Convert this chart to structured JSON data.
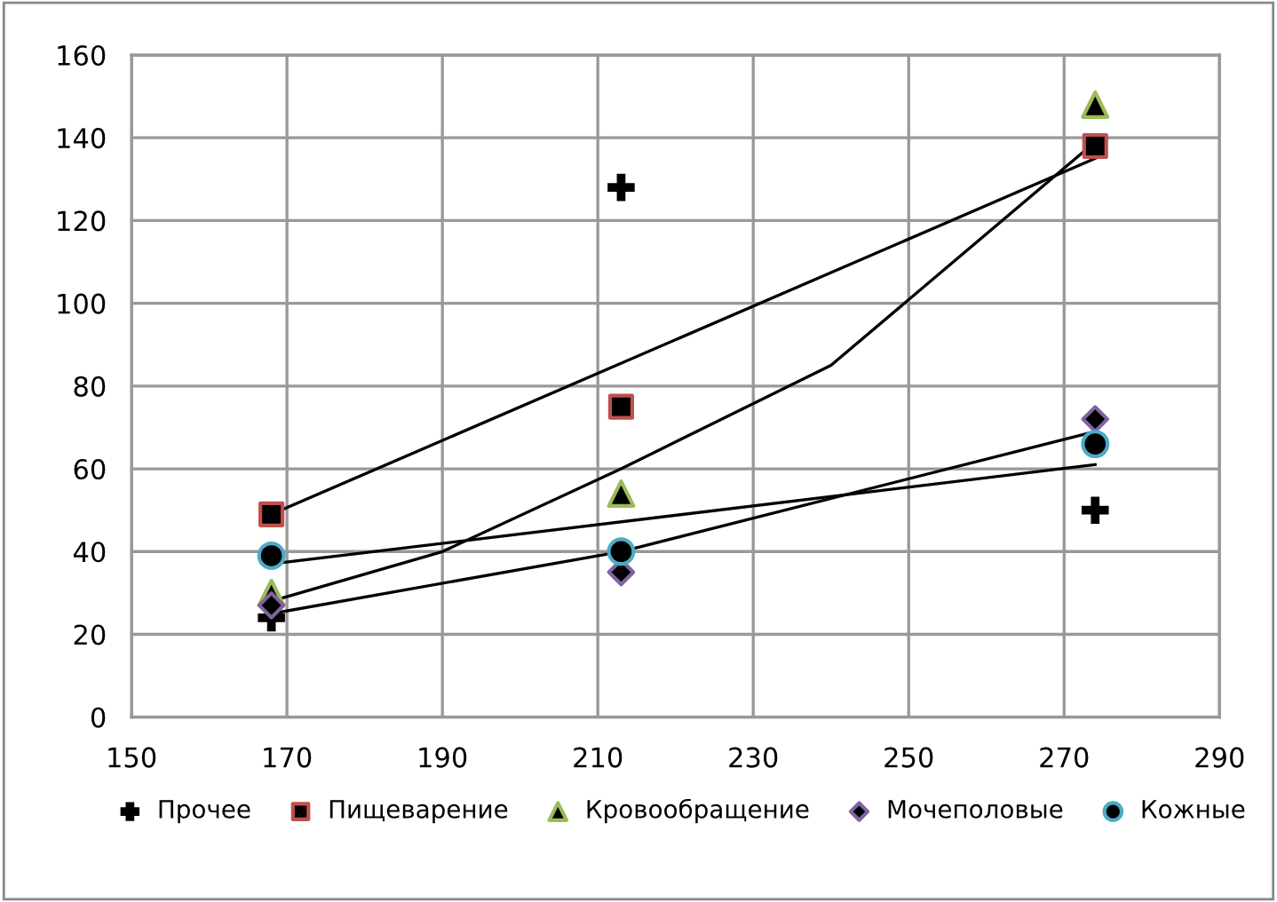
{
  "chart_data": {
    "type": "scatter",
    "xlim": [
      150,
      290
    ],
    "xticks": [
      150,
      170,
      190,
      210,
      230,
      250,
      270,
      290
    ],
    "ylim": [
      0,
      160
    ],
    "yticks": [
      0,
      20,
      40,
      60,
      80,
      100,
      120,
      140,
      160
    ],
    "grid": true,
    "legend": "bottom",
    "series": [
      {
        "name": "Прочее",
        "color": "#000000",
        "marker": "cross",
        "x": [
          168,
          213,
          274
        ],
        "values": [
          24,
          128,
          50
        ]
      },
      {
        "name": "Пищеварение",
        "color": "#c0504d",
        "marker": "square",
        "x": [
          168,
          213,
          274
        ],
        "values": [
          49,
          75,
          138
        ]
      },
      {
        "name": "Кровообращение",
        "color": "#9bbb59",
        "marker": "triangle",
        "x": [
          168,
          213,
          274
        ],
        "values": [
          30,
          54,
          148
        ]
      },
      {
        "name": "Мочеполовые",
        "color": "#8064a2",
        "marker": "diamond",
        "x": [
          168,
          213,
          274
        ],
        "values": [
          27,
          35,
          72
        ]
      },
      {
        "name": "Кожные",
        "color": "#4bacc6",
        "marker": "circle",
        "x": [
          168,
          213,
          274
        ],
        "values": [
          39,
          40,
          66
        ]
      },
      {
        "type": "line",
        "color": "#000000",
        "marker": "none",
        "x": [
          168,
          274
        ],
        "values": [
          49,
          135
        ]
      },
      {
        "type": "line",
        "color": "#000000",
        "marker": "none",
        "x": [
          168,
          190,
          213,
          240,
          274
        ],
        "values": [
          28,
          40,
          60,
          85,
          139
        ]
      },
      {
        "type": "line",
        "color": "#000000",
        "marker": "none",
        "x": [
          168,
          274
        ],
        "values": [
          37,
          61
        ]
      },
      {
        "type": "line",
        "color": "#000000",
        "marker": "none",
        "x": [
          168,
          213,
          274
        ],
        "values": [
          25,
          40,
          69
        ]
      }
    ]
  }
}
